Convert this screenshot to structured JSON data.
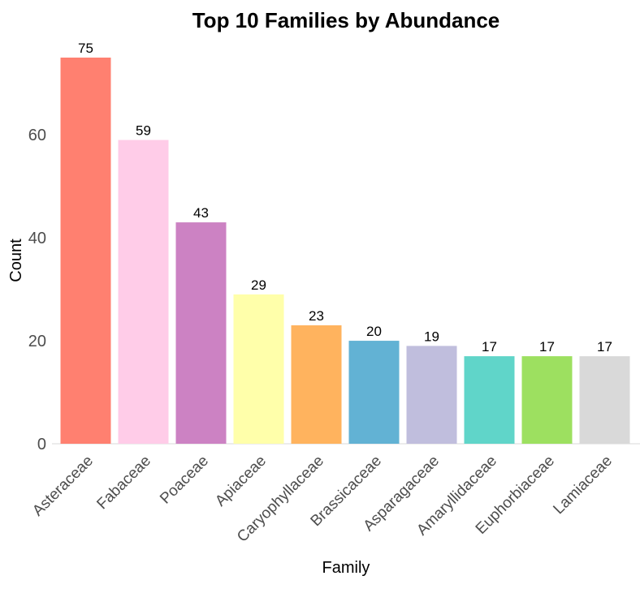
{
  "chart_data": {
    "type": "bar",
    "title": "Top 10 Families by Abundance",
    "xlabel": "Family",
    "ylabel": "Count",
    "categories": [
      "Asteraceae",
      "Fabaceae",
      "Poaceae",
      "Apiaceae",
      "Caryophyllaceae",
      "Brassicaceae",
      "Asparagaceae",
      "Amaryllidaceae",
      "Euphorbiaceae",
      "Lamiaceae"
    ],
    "values": [
      75,
      59,
      43,
      29,
      23,
      20,
      19,
      17,
      17,
      17
    ],
    "colors": [
      "#FF8070",
      "#FFCCE8",
      "#CC82C3",
      "#FFFFAA",
      "#FFB35E",
      "#62B2D4",
      "#C0BEDD",
      "#60D5C9",
      "#9DE060",
      "#D9D9D9"
    ],
    "yticks": [
      0,
      20,
      40,
      60
    ],
    "ylim": [
      0,
      75
    ],
    "grid": false,
    "legend": "none"
  }
}
